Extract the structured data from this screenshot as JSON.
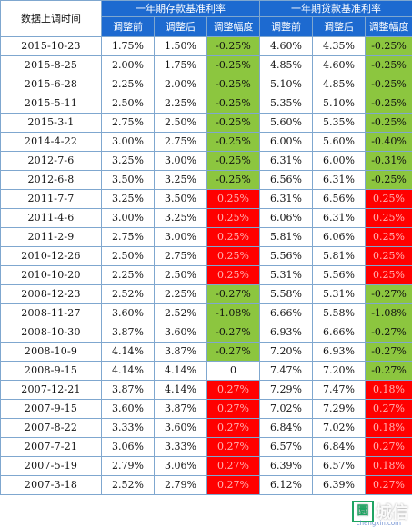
{
  "header": {
    "date_col": "数据上调时间",
    "deposit_group": "一年期存款基准利率",
    "loan_group": "一年期贷款基准利率",
    "before": "调整前",
    "after": "调整后",
    "change": "调整幅度"
  },
  "rows": [
    {
      "date": "2015-10-23",
      "dep_before": "1.75%",
      "dep_after": "1.50%",
      "dep_change": "-0.25%",
      "dep_status": "down",
      "loan_before": "4.60%",
      "loan_after": "4.35%",
      "loan_change": "-0.25%",
      "loan_status": "down"
    },
    {
      "date": "2015-8-25",
      "dep_before": "2.00%",
      "dep_after": "1.75%",
      "dep_change": "-0.25%",
      "dep_status": "down",
      "loan_before": "4.85%",
      "loan_after": "4.60%",
      "loan_change": "-0.25%",
      "loan_status": "down"
    },
    {
      "date": "2015-6-28",
      "dep_before": "2.25%",
      "dep_after": "2.00%",
      "dep_change": "-0.25%",
      "dep_status": "down",
      "loan_before": "5.10%",
      "loan_after": "4.85%",
      "loan_change": "-0.25%",
      "loan_status": "down"
    },
    {
      "date": "2015-5-11",
      "dep_before": "2.50%",
      "dep_after": "2.25%",
      "dep_change": "-0.25%",
      "dep_status": "down",
      "loan_before": "5.35%",
      "loan_after": "5.10%",
      "loan_change": "-0.25%",
      "loan_status": "down"
    },
    {
      "date": "2015-3-1",
      "dep_before": "2.75%",
      "dep_after": "2.50%",
      "dep_change": "-0.25%",
      "dep_status": "down",
      "loan_before": "5.60%",
      "loan_after": "5.35%",
      "loan_change": "-0.25%",
      "loan_status": "down"
    },
    {
      "date": "2014-4-22",
      "dep_before": "3.00%",
      "dep_after": "2.75%",
      "dep_change": "-0.25%",
      "dep_status": "down",
      "loan_before": "6.00%",
      "loan_after": "5.60%",
      "loan_change": "-0.40%",
      "loan_status": "down"
    },
    {
      "date": "2012-7-6",
      "dep_before": "3.25%",
      "dep_after": "3.00%",
      "dep_change": "-0.25%",
      "dep_status": "down",
      "loan_before": "6.31%",
      "loan_after": "6.00%",
      "loan_change": "-0.31%",
      "loan_status": "down"
    },
    {
      "date": "2012-6-8",
      "dep_before": "3.50%",
      "dep_after": "3.25%",
      "dep_change": "-0.25%",
      "dep_status": "down",
      "loan_before": "6.56%",
      "loan_after": "6.31%",
      "loan_change": "-0.25%",
      "loan_status": "down"
    },
    {
      "date": "2011-7-7",
      "dep_before": "3.25%",
      "dep_after": "3.50%",
      "dep_change": "0.25%",
      "dep_status": "up",
      "loan_before": "6.31%",
      "loan_after": "6.56%",
      "loan_change": "0.25%",
      "loan_status": "up"
    },
    {
      "date": "2011-4-6",
      "dep_before": "3.00%",
      "dep_after": "3.25%",
      "dep_change": "0.25%",
      "dep_status": "up",
      "loan_before": "6.06%",
      "loan_after": "6.31%",
      "loan_change": "0.25%",
      "loan_status": "up"
    },
    {
      "date": "2011-2-9",
      "dep_before": "2.75%",
      "dep_after": "3.00%",
      "dep_change": "0.25%",
      "dep_status": "up",
      "loan_before": "5.81%",
      "loan_after": "6.06%",
      "loan_change": "0.25%",
      "loan_status": "up"
    },
    {
      "date": "2010-12-26",
      "dep_before": "2.50%",
      "dep_after": "2.75%",
      "dep_change": "0.25%",
      "dep_status": "up",
      "loan_before": "5.56%",
      "loan_after": "5.81%",
      "loan_change": "0.25%",
      "loan_status": "up"
    },
    {
      "date": "2010-10-20",
      "dep_before": "2.25%",
      "dep_after": "2.50%",
      "dep_change": "0.25%",
      "dep_status": "up",
      "loan_before": "5.31%",
      "loan_after": "5.56%",
      "loan_change": "0.25%",
      "loan_status": "up"
    },
    {
      "date": "2008-12-23",
      "dep_before": "2.52%",
      "dep_after": "2.25%",
      "dep_change": "-0.27%",
      "dep_status": "down",
      "loan_before": "5.58%",
      "loan_after": "5.31%",
      "loan_change": "-0.27%",
      "loan_status": "down"
    },
    {
      "date": "2008-11-27",
      "dep_before": "3.60%",
      "dep_after": "2.52%",
      "dep_change": "-1.08%",
      "dep_status": "down",
      "loan_before": "6.66%",
      "loan_after": "5.58%",
      "loan_change": "-1.08%",
      "loan_status": "down"
    },
    {
      "date": "2008-10-30",
      "dep_before": "3.87%",
      "dep_after": "3.60%",
      "dep_change": "-0.27%",
      "dep_status": "down",
      "loan_before": "6.93%",
      "loan_after": "6.66%",
      "loan_change": "-0.27%",
      "loan_status": "down"
    },
    {
      "date": "2008-10-9",
      "dep_before": "4.14%",
      "dep_after": "3.87%",
      "dep_change": "-0.27%",
      "dep_status": "down",
      "loan_before": "7.20%",
      "loan_after": "6.93%",
      "loan_change": "-0.27%",
      "loan_status": "down"
    },
    {
      "date": "2008-9-15",
      "dep_before": "4.14%",
      "dep_after": "4.14%",
      "dep_change": "0",
      "dep_status": "none",
      "loan_before": "7.47%",
      "loan_after": "7.20%",
      "loan_change": "-0.27%",
      "loan_status": "down"
    },
    {
      "date": "2007-12-21",
      "dep_before": "3.87%",
      "dep_after": "4.14%",
      "dep_change": "0.27%",
      "dep_status": "up",
      "loan_before": "7.29%",
      "loan_after": "7.47%",
      "loan_change": "0.18%",
      "loan_status": "up"
    },
    {
      "date": "2007-9-15",
      "dep_before": "3.60%",
      "dep_after": "3.87%",
      "dep_change": "0.27%",
      "dep_status": "up",
      "loan_before": "7.02%",
      "loan_after": "7.29%",
      "loan_change": "0.27%",
      "loan_status": "up"
    },
    {
      "date": "2007-8-22",
      "dep_before": "3.33%",
      "dep_after": "3.60%",
      "dep_change": "0.27%",
      "dep_status": "up",
      "loan_before": "6.84%",
      "loan_after": "7.02%",
      "loan_change": "0.18%",
      "loan_status": "up"
    },
    {
      "date": "2007-7-21",
      "dep_before": "3.06%",
      "dep_after": "3.33%",
      "dep_change": "0.27%",
      "dep_status": "up",
      "loan_before": "6.57%",
      "loan_after": "6.84%",
      "loan_change": "0.27%",
      "loan_status": "up"
    },
    {
      "date": "2007-5-19",
      "dep_before": "2.79%",
      "dep_after": "3.06%",
      "dep_change": "0.27%",
      "dep_status": "up",
      "loan_before": "6.39%",
      "loan_after": "6.57%",
      "loan_change": "0.18%",
      "loan_status": "up"
    },
    {
      "date": "2007-3-18",
      "dep_before": "2.52%",
      "dep_after": "2.79%",
      "dep_change": "0.27%",
      "dep_status": "up",
      "loan_before": "6.12%",
      "loan_after": "6.39%",
      "loan_change": "0.27%",
      "loan_status": "up"
    }
  ],
  "colors": {
    "header_blue": "#1d6ad0",
    "decrease_green": "#8cc63f",
    "increase_red": "#ff0000",
    "grid_line": "#7fa7cf"
  },
  "watermark": {
    "box_char": "圜",
    "text": "城信",
    "sub": "chengxin.com"
  }
}
